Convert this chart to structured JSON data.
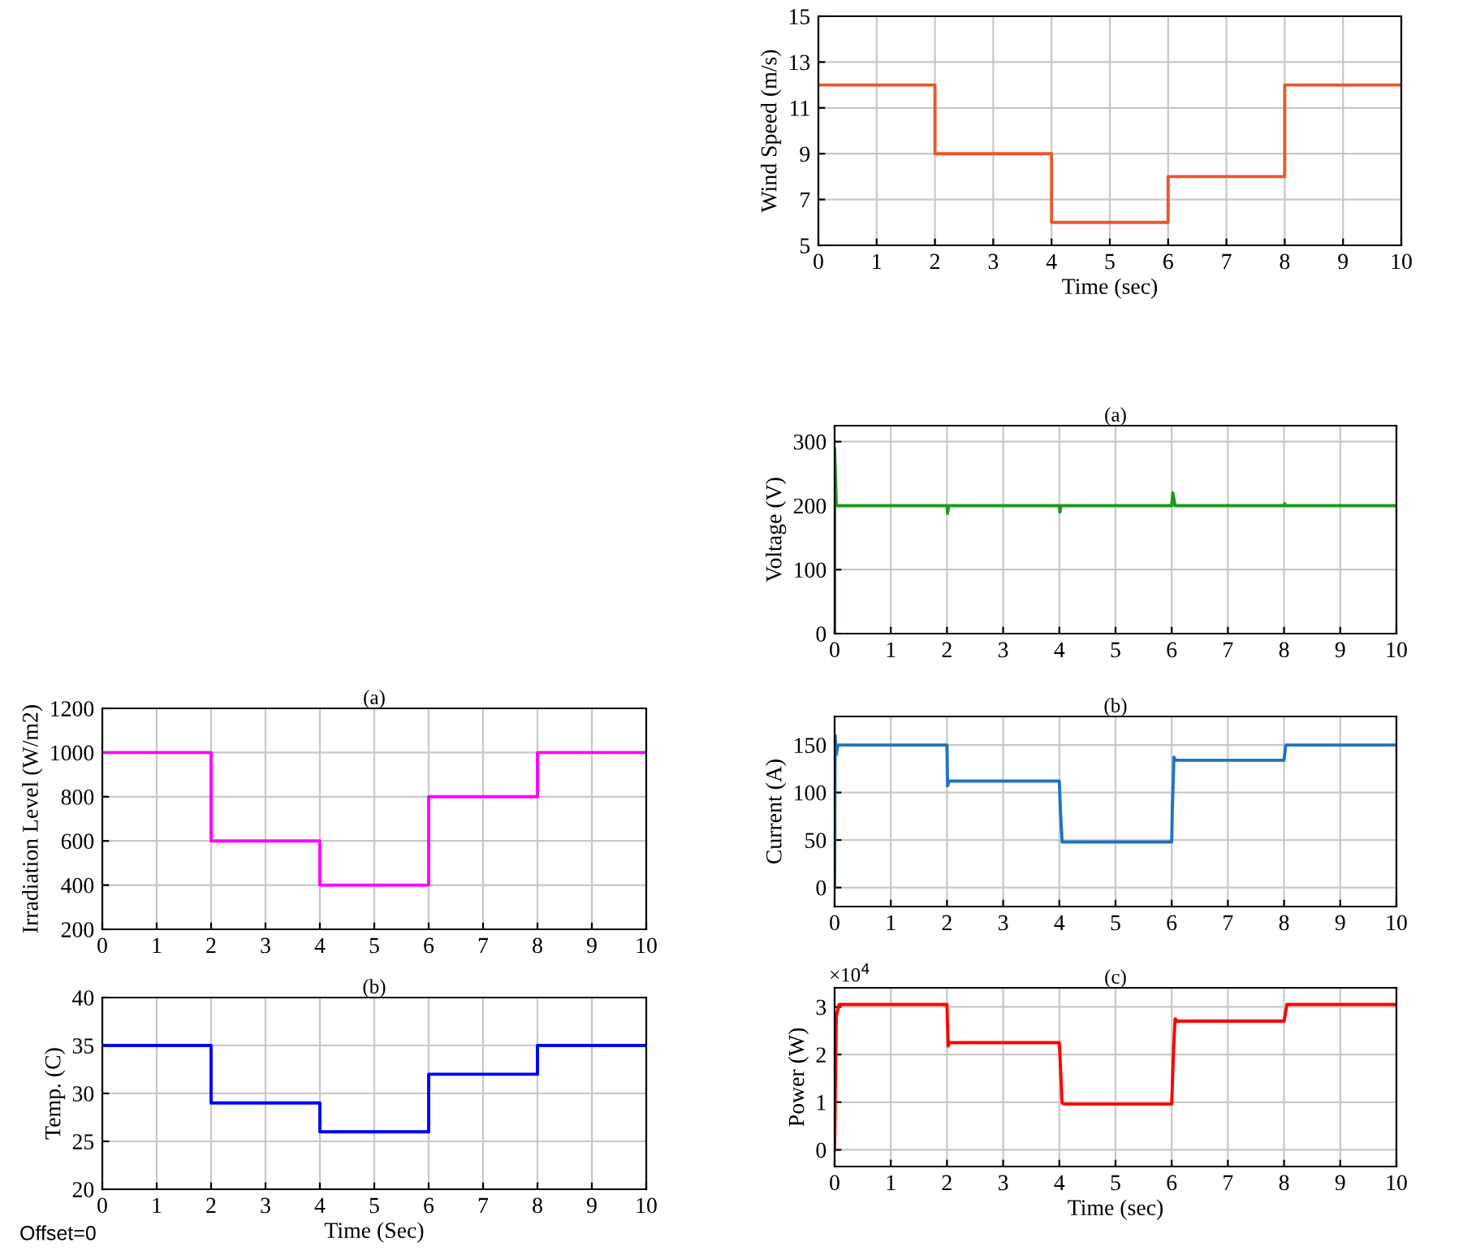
{
  "chart_data": [
    {
      "type": "step",
      "xlabel": "Time (sec)",
      "ylabel": "Wind Speed (m/s)",
      "xlim": [
        0,
        10
      ],
      "ylim": [
        5,
        15
      ],
      "xticks": [
        0,
        1,
        2,
        3,
        4,
        5,
        6,
        7,
        8,
        9,
        10
      ],
      "yticks": [
        5,
        7,
        9,
        11,
        13,
        15
      ],
      "grid": true,
      "series": [
        {
          "color": "#e8582a",
          "x": [
            0,
            2,
            4,
            6,
            8,
            10
          ],
          "values": [
            12,
            9,
            6,
            8,
            12,
            12
          ]
        }
      ]
    },
    {
      "type": "line",
      "title": "(a)",
      "ylabel": "Voltage (V)",
      "xlim": [
        0,
        10
      ],
      "ylim": [
        0,
        325
      ],
      "xticks": [
        0,
        1,
        2,
        3,
        4,
        5,
        6,
        7,
        8,
        9,
        10
      ],
      "yticks": [
        0,
        100,
        200,
        300
      ],
      "grid": true,
      "series": [
        {
          "color": "#1f9a1f",
          "x": [
            0,
            0,
            0.03,
            2,
            2.01,
            2.03,
            4,
            4.01,
            4.03,
            6,
            6.02,
            6.06,
            8,
            8.01,
            8.03,
            10
          ],
          "values": [
            0,
            290,
            200,
            200,
            188,
            200,
            200,
            190,
            200,
            200,
            220,
            200,
            200,
            203,
            200,
            200
          ]
        }
      ]
    },
    {
      "type": "line",
      "title": "(b)",
      "ylabel": "Current (A)",
      "xlim": [
        0,
        10
      ],
      "ylim": [
        -20,
        180
      ],
      "xticks": [
        0,
        1,
        2,
        3,
        4,
        5,
        6,
        7,
        8,
        9,
        10
      ],
      "yticks": [
        0,
        50,
        100,
        150
      ],
      "grid": true,
      "series": [
        {
          "color": "#1f74c0",
          "x": [
            0,
            0.01,
            0.03,
            0.06,
            2,
            2.01,
            2.04,
            4,
            4.02,
            4.05,
            6,
            6.01,
            6.04,
            6.07,
            8,
            8.03,
            10
          ],
          "values": [
            0,
            160,
            140,
            150,
            150,
            107,
            112,
            112,
            80,
            48,
            48,
            80,
            137,
            134,
            134,
            150,
            150
          ]
        }
      ]
    },
    {
      "type": "line",
      "title": "(c)",
      "xlabel": "Time (sec)",
      "ylabel": "Power (W)",
      "xlim": [
        0,
        10
      ],
      "ylim": [
        -0.35,
        3.4
      ],
      "xticks": [
        0,
        1,
        2,
        3,
        4,
        5,
        6,
        7,
        8,
        9,
        10
      ],
      "yticks": [
        0,
        1,
        2,
        3
      ],
      "grid": true,
      "annotations": [
        "×10$^{4}$"
      ],
      "series": [
        {
          "color": "#ff0000",
          "x": [
            0,
            0.03,
            0.08,
            2,
            2.02,
            2.05,
            4,
            4.05,
            4.1,
            6,
            6.03,
            6.06,
            6.1,
            8,
            8.05,
            10
          ],
          "values": [
            0,
            2.8,
            3.05,
            3.05,
            2.18,
            2.25,
            2.25,
            0.98,
            0.96,
            0.96,
            2,
            2.75,
            2.7,
            2.7,
            3.05,
            3.05
          ]
        }
      ]
    },
    {
      "type": "step",
      "title": "(a)",
      "ylabel": "Irradiation Level (W/m2)",
      "xlim": [
        0,
        10
      ],
      "ylim": [
        200,
        1200
      ],
      "xticks": [
        0,
        1,
        2,
        3,
        4,
        5,
        6,
        7,
        8,
        9,
        10
      ],
      "yticks": [
        200,
        400,
        600,
        800,
        1000,
        1200
      ],
      "grid": true,
      "series": [
        {
          "color": "#ff00ff",
          "x": [
            0,
            2,
            4,
            6,
            8,
            10
          ],
          "values": [
            1000,
            600,
            400,
            800,
            1000,
            1000
          ]
        }
      ]
    },
    {
      "type": "step",
      "title": "(b)",
      "xlabel": "Time (Sec)",
      "ylabel": "Temp. (C)",
      "xlim": [
        0,
        10
      ],
      "ylim": [
        20,
        40
      ],
      "xticks": [
        0,
        1,
        2,
        3,
        4,
        5,
        6,
        7,
        8,
        9,
        10
      ],
      "yticks": [
        20,
        25,
        30,
        35,
        40
      ],
      "grid": true,
      "annotations": [
        "Offset=0"
      ],
      "series": [
        {
          "color": "#0000ff",
          "x": [
            0,
            2,
            4,
            6,
            8,
            10
          ],
          "values": [
            35,
            29,
            26,
            32,
            35,
            35
          ]
        }
      ]
    }
  ]
}
